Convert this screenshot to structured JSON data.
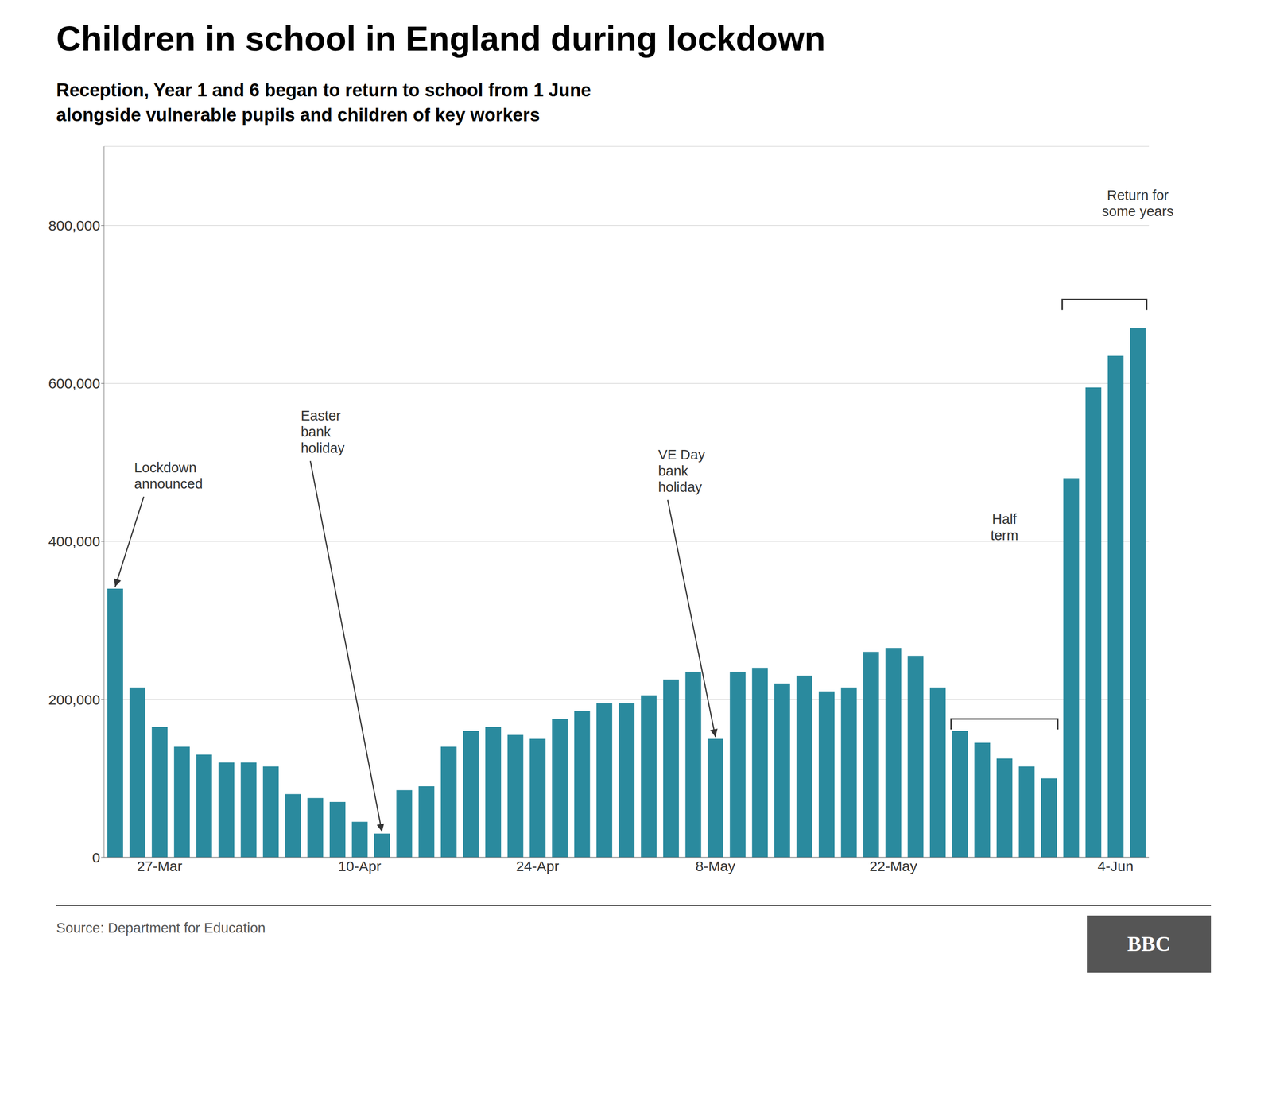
{
  "chart_data": {
    "type": "bar",
    "title": "Children in school in England during lockdown",
    "subtitle": [
      "Reception, Year 1 and 6 began to return to school from 1 June",
      "alongside vulnerable pupils and children of key workers"
    ],
    "source": "Source: Department for Education",
    "logo": "BBC",
    "categories": [
      null,
      null,
      "27-Mar",
      null,
      null,
      null,
      null,
      null,
      null,
      null,
      null,
      "10-Apr",
      null,
      null,
      null,
      null,
      null,
      null,
      null,
      "24-Apr",
      null,
      null,
      null,
      null,
      null,
      null,
      null,
      "8-May",
      null,
      null,
      null,
      null,
      null,
      null,
      null,
      "22-May",
      null,
      null,
      null,
      null,
      null,
      null,
      null,
      null,
      null,
      "4-Jun",
      null
    ],
    "values": [
      340000,
      215000,
      165000,
      140000,
      130000,
      120000,
      120000,
      115000,
      80000,
      75000,
      70000,
      45000,
      30000,
      85000,
      90000,
      140000,
      160000,
      165000,
      155000,
      150000,
      175000,
      185000,
      195000,
      195000,
      205000,
      225000,
      235000,
      150000,
      235000,
      240000,
      220000,
      230000,
      210000,
      215000,
      260000,
      265000,
      255000,
      215000,
      160000,
      145000,
      125000,
      115000,
      100000,
      480000,
      595000,
      635000,
      670000
    ],
    "color": "#2a8a9e",
    "ylim": [
      0,
      900000
    ],
    "yticks": [
      0,
      {
        "value": 200000,
        "label": "200,000"
      },
      {
        "value": 400000,
        "label": "400,000"
      },
      {
        "value": 600000,
        "label": "600,000"
      },
      {
        "value": 800000,
        "label": "800,000"
      }
    ],
    "grid": true,
    "annotations": [
      "Lockdown\nannounced",
      "Easter\nbank\nholiday",
      "VE Day\nbank\nholiday",
      "Half\nterm",
      "Return for\nsome years"
    ]
  }
}
